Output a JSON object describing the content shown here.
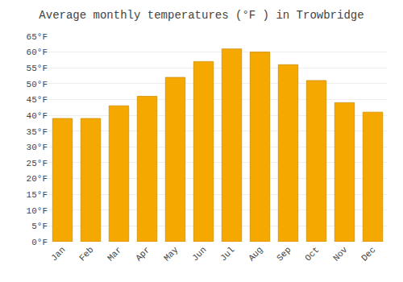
{
  "chart_data": {
    "type": "bar",
    "title": "Average monthly temperatures (°F ) in Trowbridge",
    "categories": [
      "Jan",
      "Feb",
      "Mar",
      "Apr",
      "May",
      "Jun",
      "Jul",
      "Aug",
      "Sep",
      "Oct",
      "Nov",
      "Dec"
    ],
    "values": [
      39,
      39,
      43,
      46,
      52,
      57,
      61,
      60,
      56,
      51,
      44,
      41
    ],
    "color": "#F5A800",
    "ylim": [
      0,
      65
    ],
    "yticks": [
      {
        "value": 0,
        "label": "0°F"
      },
      {
        "value": 5,
        "label": "5°F"
      },
      {
        "value": 10,
        "label": "10°F"
      },
      {
        "value": 15,
        "label": "15°F"
      },
      {
        "value": 20,
        "label": "20°F"
      },
      {
        "value": 25,
        "label": "25°F"
      },
      {
        "value": 30,
        "label": "30°F"
      },
      {
        "value": 35,
        "label": "35°F"
      },
      {
        "value": 40,
        "label": "40°F"
      },
      {
        "value": 45,
        "label": "45°F"
      },
      {
        "value": 50,
        "label": "50°F"
      },
      {
        "value": 55,
        "label": "55°F"
      },
      {
        "value": 60,
        "label": "60°F"
      },
      {
        "value": 65,
        "label": "65°F"
      }
    ],
    "grid": true
  }
}
